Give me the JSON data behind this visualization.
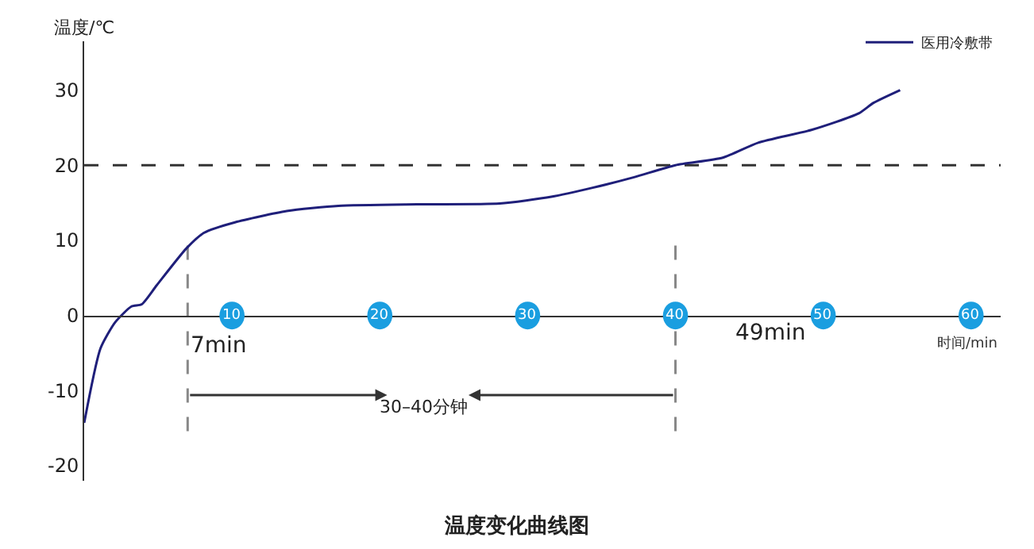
{
  "chart_data": {
    "type": "line",
    "title": "温度变化曲线图",
    "xlabel": "时间/min",
    "ylabel": "温度/℃",
    "x": [
      0,
      1.1,
      2.1,
      3.2,
      3.9,
      4.9,
      6.9,
      8.1,
      10.2,
      13.7,
      17.2,
      22.5,
      28.1,
      31.6,
      34.4,
      37.2,
      40,
      43.2,
      45.6,
      49.2,
      52.4,
      53.4,
      55.2
    ],
    "series": [
      {
        "name": "医用冷敷带",
        "color": "#1f1f7a",
        "values": [
          -14.3,
          -4.4,
          -0.9,
          1.2,
          1.5,
          4,
          8.9,
          11,
          12.4,
          13.9,
          14.6,
          14.8,
          14.9,
          15.8,
          17,
          18.4,
          20,
          21,
          23,
          24.7,
          26.9,
          28.3,
          30
        ]
      }
    ],
    "xlim": [
      0,
      62
    ],
    "ylim": [
      -22,
      36.5
    ],
    "xticks": [
      10,
      20,
      30,
      40,
      50,
      60
    ],
    "yticks": [
      30,
      20,
      10,
      0,
      -10,
      -20
    ],
    "ref_lines": [
      {
        "axis": "y",
        "value": 20,
        "line_style": "dashed",
        "color": "#333333"
      },
      {
        "axis": "x",
        "value": 7,
        "label": "7min",
        "line_style": "dashed",
        "color": "#888888"
      },
      {
        "axis": "x",
        "value": 40,
        "line_style": "dashed",
        "color": "#888888"
      }
    ],
    "annotations": [
      "49min",
      "30–40分钟"
    ],
    "grid": false,
    "legend": "top right",
    "marker": "none",
    "line_style": "solid"
  }
}
